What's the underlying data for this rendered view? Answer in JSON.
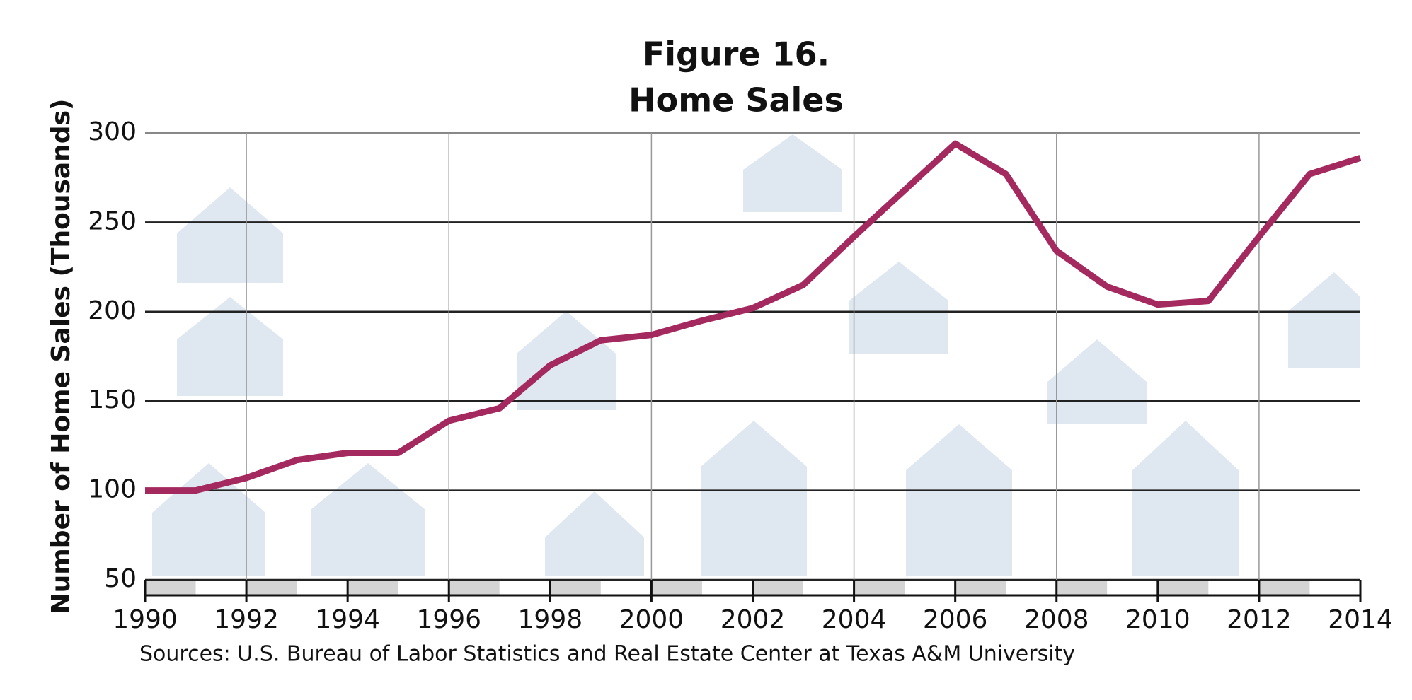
{
  "chart_data": {
    "type": "line",
    "title": "Figure 16.",
    "subtitle": "Home Sales",
    "y_label": "Number of Home Sales  (Thousands)",
    "source": "Sources: U.S. Bureau of Labor Statistics and Real Estate Center at Texas A&M University",
    "x": [
      1990,
      1991,
      1992,
      1993,
      1994,
      1995,
      1996,
      1997,
      1998,
      1999,
      2000,
      2001,
      2002,
      2003,
      2004,
      2005,
      2006,
      2007,
      2008,
      2009,
      2010,
      2011,
      2012,
      2013,
      2014
    ],
    "series": [
      {
        "color": "#a3295f",
        "values": [
          100,
          100,
          107,
          117,
          121,
          121,
          139,
          146,
          170,
          184,
          187,
          195,
          202,
          215,
          242,
          268,
          294,
          277,
          234,
          214,
          204,
          206,
          242,
          277,
          286
        ]
      }
    ],
    "xlim": [
      1990,
      2014
    ],
    "xticks": [
      1990,
      1992,
      1994,
      1996,
      1998,
      2000,
      2002,
      2004,
      2006,
      2008,
      2010,
      2012,
      2014
    ],
    "ylim": [
      50,
      300
    ],
    "yticks": [
      50,
      100,
      150,
      200,
      250,
      300
    ],
    "grid": true
  }
}
